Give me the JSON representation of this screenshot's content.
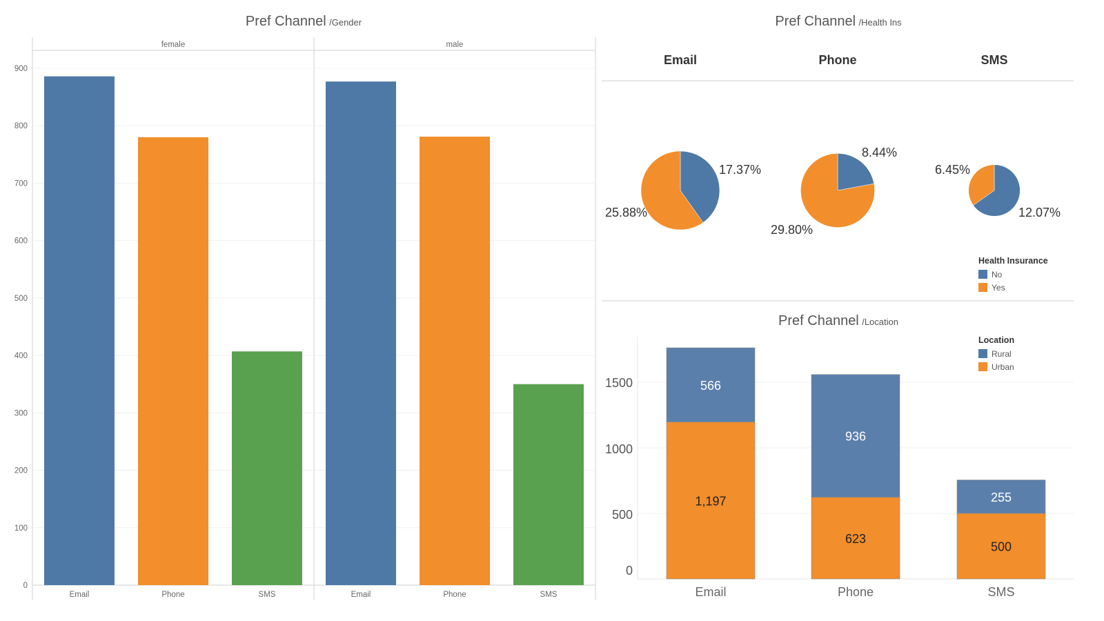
{
  "colors": {
    "blue": "#4e79a7",
    "orange": "#f28e2b",
    "green": "#59a14f",
    "rural_blue": "#5b7fab"
  },
  "gender_panel": {
    "title": "Pref Channel",
    "subtitle": "/Gender",
    "chart_data": {
      "type": "bar",
      "title": "Pref Channel /Gender",
      "facets": [
        "female",
        "male"
      ],
      "categories": [
        "Email",
        "Phone",
        "SMS"
      ],
      "y_ticks": [
        "0",
        "100",
        "200",
        "300",
        "400",
        "500",
        "600",
        "700",
        "800",
        "900"
      ],
      "ylim": [
        0,
        950
      ],
      "series": [
        {
          "facet": "female",
          "values": [
            886,
            780,
            407
          ]
        },
        {
          "facet": "male",
          "values": [
            877,
            781,
            350
          ]
        }
      ],
      "bar_colors": [
        "#4e79a7",
        "#f28e2b",
        "#59a14f"
      ]
    }
  },
  "health_panel": {
    "title": "Pref Channel",
    "subtitle": "/Health Ins",
    "chart_data": {
      "type": "pie",
      "title": "Pref Channel /Health Ins",
      "columns": [
        "Email",
        "Phone",
        "SMS"
      ],
      "pies": [
        {
          "name": "Email",
          "no": 17.37,
          "yes": 25.88,
          "no_label": "17.37%",
          "yes_label": "25.88%"
        },
        {
          "name": "Phone",
          "no": 8.44,
          "yes": 29.8,
          "no_label": "8.44%",
          "yes_label": "29.80%"
        },
        {
          "name": "SMS",
          "no": 12.07,
          "yes": 6.45,
          "no_label": "12.07%",
          "yes_label": "6.45%"
        }
      ],
      "legend": {
        "title": "Health Insurance",
        "items": [
          {
            "label": "No",
            "color": "#4e79a7"
          },
          {
            "label": "Yes",
            "color": "#f28e2b"
          }
        ],
        "placement": "bottom-right"
      }
    }
  },
  "location_panel": {
    "title": "Pref Channel",
    "subtitle": "/Location",
    "chart_data": {
      "type": "bar",
      "stacked": true,
      "title": "Pref Channel /Location",
      "categories": [
        "Email",
        "Phone",
        "SMS"
      ],
      "y_ticks": [
        "0",
        "500",
        "1000",
        "1500"
      ],
      "ylim": [
        0,
        1850
      ],
      "series": [
        {
          "name": "Urban",
          "values": [
            1197,
            623,
            500
          ],
          "labels": [
            "1,197",
            "623",
            "500"
          ],
          "color": "#f28e2b"
        },
        {
          "name": "Rural",
          "values": [
            566,
            936,
            255
          ],
          "labels": [
            "566",
            "936",
            "255"
          ],
          "color": "#5b7fab"
        }
      ],
      "legend": {
        "title": "Location",
        "items": [
          {
            "label": "Rural",
            "color": "#4e79a7"
          },
          {
            "label": "Urban",
            "color": "#f28e2b"
          }
        ],
        "placement": "top-right"
      }
    }
  }
}
